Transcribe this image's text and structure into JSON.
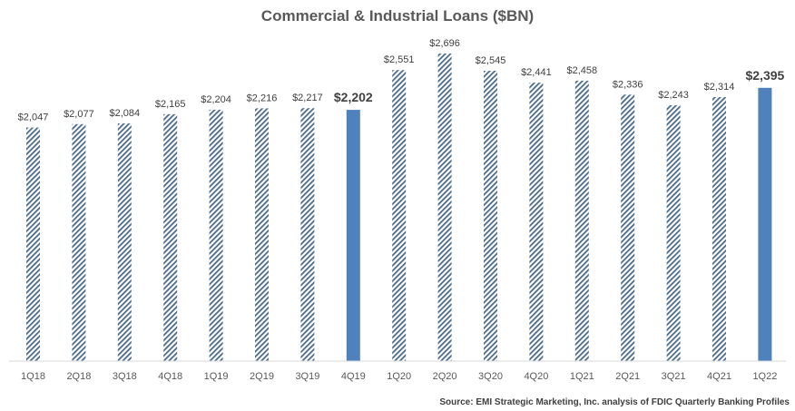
{
  "chart_data": {
    "type": "bar",
    "title": "Commercial & Industrial Loans ($BN)",
    "source": "Source: EMI Strategic Marketing, Inc. analysis of FDIC Quarterly Banking Profiles",
    "categories": [
      "1Q18",
      "2Q18",
      "3Q18",
      "4Q18",
      "1Q19",
      "2Q19",
      "3Q19",
      "4Q19",
      "1Q20",
      "2Q20",
      "3Q20",
      "4Q20",
      "1Q21",
      "2Q21",
      "3Q21",
      "4Q21",
      "1Q22"
    ],
    "values": [
      2047,
      2077,
      2084,
      2165,
      2204,
      2216,
      2217,
      2202,
      2551,
      2696,
      2545,
      2441,
      2458,
      2336,
      2243,
      2314,
      2395
    ],
    "value_labels": [
      "$2,047",
      "$2,077",
      "$2,084",
      "$2,165",
      "$2,204",
      "$2,216",
      "$2,217",
      "$2,202",
      "$2,551",
      "$2,696",
      "$2,545",
      "$2,441",
      "$2,458",
      "$2,336",
      "$2,243",
      "$2,314",
      "$2,395"
    ],
    "highlighted": [
      "4Q19",
      "1Q22"
    ],
    "ylim": [
      0,
      2750
    ],
    "grid": false,
    "colors": {
      "highlight": "#4f81bd",
      "hatch": "#4a6a8a",
      "axis": "#d9d9d9"
    }
  }
}
